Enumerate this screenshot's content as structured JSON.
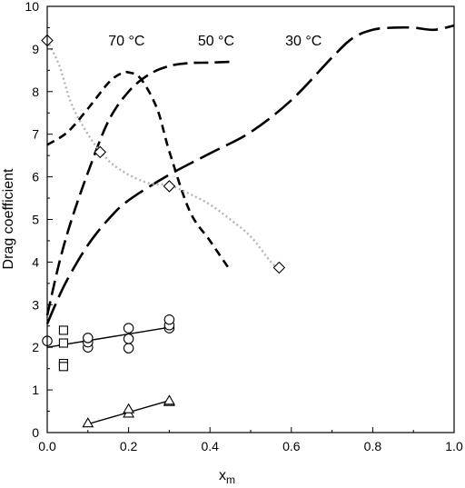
{
  "chart_data": {
    "type": "scatter",
    "title": "",
    "xlabel": "x",
    "xlabel_sub": "m",
    "ylabel": "Drag coefficient",
    "xlim": [
      0.0,
      1.0
    ],
    "ylim": [
      0,
      10
    ],
    "xticks": [
      "0.0",
      "0.2",
      "0.4",
      "0.6",
      "0.8",
      "1.0"
    ],
    "yticks": [
      "0",
      "1",
      "2",
      "3",
      "4",
      "5",
      "6",
      "7",
      "8",
      "9",
      "10"
    ],
    "grid": false,
    "series": [
      {
        "style": "dashed-short",
        "x": [
          0.0,
          0.05,
          0.1,
          0.15,
          0.18,
          0.2,
          0.23,
          0.27,
          0.3,
          0.35,
          0.4,
          0.45
        ],
        "y": [
          6.75,
          7.05,
          7.6,
          8.2,
          8.42,
          8.45,
          8.3,
          7.6,
          6.6,
          5.2,
          4.5,
          3.8
        ]
      },
      {
        "style": "dashed-medium",
        "x": [
          0.0,
          0.03,
          0.06,
          0.1,
          0.15,
          0.2,
          0.25,
          0.3,
          0.35,
          0.4,
          0.45
        ],
        "y": [
          2.75,
          4.0,
          5.0,
          6.1,
          7.3,
          8.0,
          8.4,
          8.6,
          8.67,
          8.68,
          8.7
        ]
      },
      {
        "style": "dashed-long",
        "x": [
          0.0,
          0.02,
          0.05,
          0.1,
          0.15,
          0.2,
          0.3,
          0.4,
          0.5,
          0.6,
          0.7,
          0.75,
          0.8,
          0.85,
          0.9,
          0.95,
          1.0
        ],
        "y": [
          2.55,
          3.0,
          3.6,
          4.4,
          5.0,
          5.45,
          6.05,
          6.55,
          7.05,
          7.8,
          8.8,
          9.25,
          9.45,
          9.5,
          9.5,
          9.45,
          9.55
        ]
      },
      {
        "style": "dotted-gray",
        "x": [
          0.0,
          0.03,
          0.06,
          0.1,
          0.13,
          0.16,
          0.2,
          0.25,
          0.3,
          0.35,
          0.4,
          0.45,
          0.5,
          0.55,
          0.57
        ],
        "y": [
          9.2,
          8.6,
          7.7,
          7.0,
          6.6,
          6.3,
          6.05,
          5.85,
          5.8,
          5.6,
          5.35,
          5.0,
          4.6,
          4.0,
          3.85
        ]
      },
      {
        "marker": "diamond",
        "x": [
          0.0,
          0.13,
          0.3,
          0.57
        ],
        "y": [
          9.2,
          6.58,
          5.78,
          3.87
        ]
      },
      {
        "marker": "circle",
        "x": [
          0.0,
          0.1,
          0.1,
          0.1,
          0.2,
          0.2,
          0.2,
          0.3,
          0.3,
          0.3
        ],
        "y": [
          2.15,
          2.0,
          2.12,
          2.22,
          1.98,
          2.2,
          2.45,
          2.45,
          2.52,
          2.65
        ],
        "fit": {
          "x": [
            0.0,
            0.3
          ],
          "y": [
            2.0,
            2.47
          ]
        }
      },
      {
        "marker": "square",
        "x": [
          0.04,
          0.04,
          0.04,
          0.04
        ],
        "y": [
          2.4,
          2.1,
          1.62,
          1.55
        ]
      },
      {
        "marker": "triangle",
        "x": [
          0.1,
          0.2,
          0.2,
          0.3,
          0.3
        ],
        "y": [
          0.22,
          0.45,
          0.55,
          0.72,
          0.75
        ],
        "fit": {
          "x": [
            0.1,
            0.3
          ],
          "y": [
            0.2,
            0.75
          ]
        }
      }
    ],
    "annotations": [
      {
        "text": "70 °C",
        "x": 0.195,
        "y": 9.08
      },
      {
        "text": "50 °C",
        "x": 0.415,
        "y": 9.08
      },
      {
        "text": "30 °C",
        "x": 0.63,
        "y": 9.08
      }
    ]
  }
}
